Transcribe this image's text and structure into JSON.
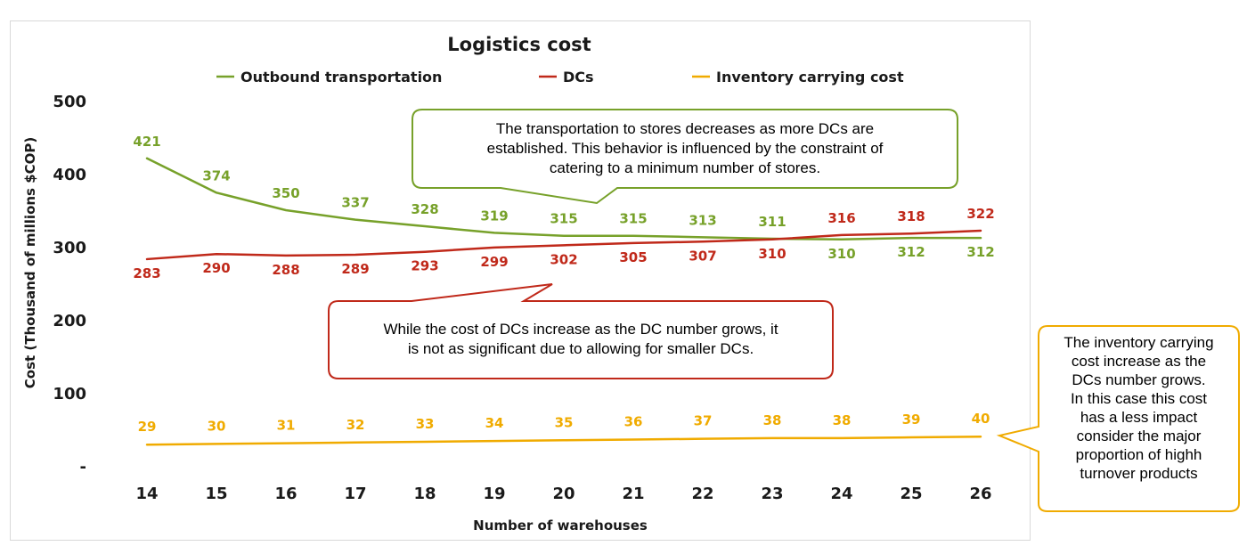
{
  "chart_data": {
    "type": "line",
    "title": "Logistics cost",
    "xlabel": "Number of warehouses",
    "ylabel": "Cost (Thousand of millions $COP)",
    "x": [
      14,
      15,
      16,
      17,
      18,
      19,
      20,
      21,
      22,
      23,
      24,
      25,
      26
    ],
    "ylim": [
      0,
      500
    ],
    "yticks": [
      0,
      100,
      200,
      300,
      400,
      500
    ],
    "ytick_labels": [
      "-",
      "100",
      "200",
      "300",
      "400",
      "500"
    ],
    "grid": false,
    "legend_position": "top",
    "series": [
      {
        "name": "Outbound transportation",
        "color": "#77a12a",
        "values": [
          421,
          374,
          350,
          337,
          328,
          319,
          315,
          315,
          313,
          311,
          310,
          312,
          312
        ]
      },
      {
        "name": "DCs",
        "color": "#c0291a",
        "values": [
          283,
          290,
          288,
          289,
          293,
          299,
          302,
          305,
          307,
          310,
          316,
          318,
          322
        ]
      },
      {
        "name": "Inventory carrying cost",
        "color": "#f0ab00",
        "values": [
          29,
          30,
          31,
          32,
          33,
          34,
          35,
          36,
          37,
          38,
          38,
          39,
          40
        ]
      }
    ],
    "annotations": [
      {
        "id": "transport-note",
        "color": "#77a12a",
        "lines": [
          "The transportation to stores decreases as more DCs are",
          "established. This behavior is influenced by the constraint of",
          "catering to a minimum number of stores."
        ]
      },
      {
        "id": "dc-note",
        "color": "#c0291a",
        "lines": [
          "While the cost of DCs increase as the DC number grows, it",
          "is not as significant due to allowing for smaller DCs."
        ]
      },
      {
        "id": "inventory-note",
        "color": "#f0ab00",
        "lines": [
          "The inventory carrying",
          "cost  increase as the",
          "DCs number grows.",
          "In this case this cost",
          "has a less impact",
          "consider the major",
          "proportion of highh",
          "turnover products"
        ]
      }
    ]
  }
}
